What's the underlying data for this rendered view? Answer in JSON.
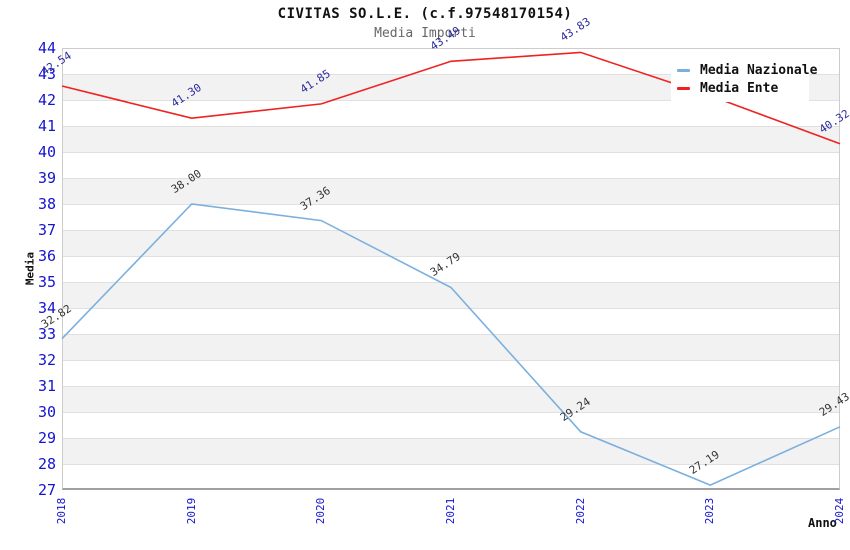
{
  "chart_data": {
    "type": "line",
    "title": "CIVITAS SO.L.E. (c.f.97548170154)",
    "subtitle": "Media Importi",
    "xlabel": "Anno",
    "ylabel": "Media",
    "categories": [
      "2018",
      "2019",
      "2020",
      "2021",
      "2022",
      "2023",
      "2024"
    ],
    "ylim": [
      27,
      44
    ],
    "yticks": [
      44,
      43,
      42,
      41,
      40,
      39,
      38,
      37,
      36,
      35,
      34,
      33,
      32,
      31,
      30,
      29,
      28,
      27
    ],
    "grid": "horizontal-bands",
    "legend_position": "top-right",
    "series": [
      {
        "name": "Media Nazionale",
        "color": "#7bb0de",
        "label_color": "#333333",
        "values": [
          32.82,
          38.0,
          37.36,
          34.79,
          29.24,
          27.19,
          29.43
        ],
        "point_labels": [
          "32.82",
          "38.00",
          "37.36",
          "34.79",
          "29.24",
          "27.19",
          "29.43"
        ]
      },
      {
        "name": "Media Ente",
        "color": "#ee2222",
        "label_color": "#2b2b9e",
        "values": [
          42.54,
          41.3,
          41.85,
          43.49,
          43.83,
          42.16,
          40.32
        ],
        "point_labels": [
          "42.54",
          "41.30",
          "41.85",
          "43.49",
          "43.83",
          null,
          "40.32"
        ]
      }
    ],
    "colors": {
      "tick_label": "#1414cf",
      "title": "#111111",
      "subtitle": "#666666",
      "band": "#f2f2f2",
      "grid": "#e0e0e0",
      "plot_border": "#cccccc",
      "axis_line": "#a0a0a0",
      "background": "#ffffff",
      "legend_bg": "#ffffff"
    }
  }
}
